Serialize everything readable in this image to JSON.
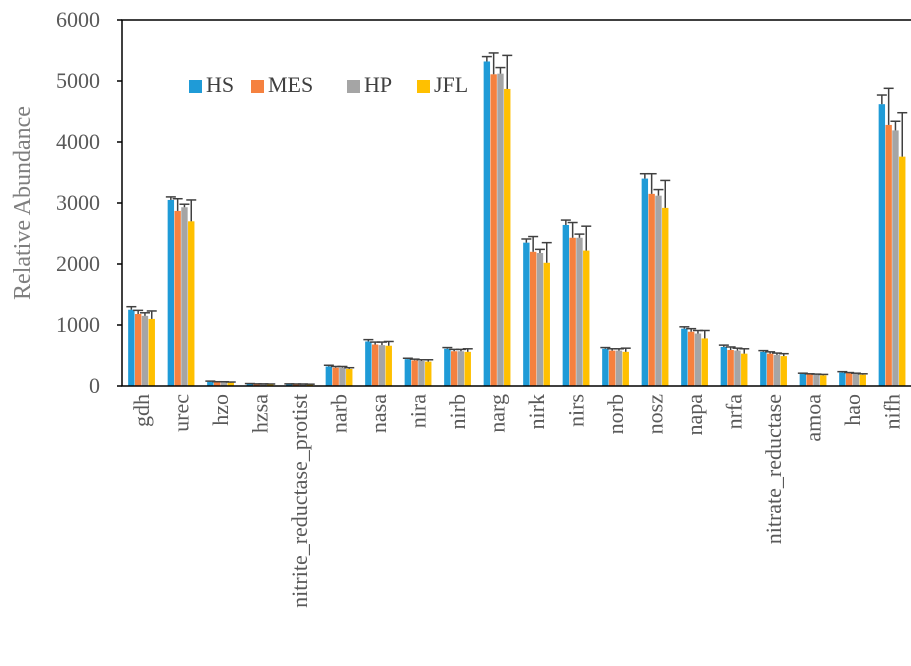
{
  "chart_data": {
    "type": "bar",
    "title": "",
    "xlabel": "",
    "ylabel": "Relative Abundance",
    "ylim": [
      0,
      6000
    ],
    "yticks": [
      0,
      1000,
      2000,
      3000,
      4000,
      5000,
      6000
    ],
    "grid": false,
    "legend_position": "top-left",
    "error_bars": true,
    "categories": [
      "gdh",
      "urec",
      "hzo",
      "hzsa",
      "nitrite_reductase_protist",
      "narb",
      "nasa",
      "nira",
      "nirb",
      "narg",
      "nirk",
      "nirs",
      "norb",
      "nosz",
      "napa",
      "nrfa",
      "nitrate_reductase",
      "amoa",
      "hao",
      "nifh"
    ],
    "series": [
      {
        "name": "HS",
        "color": "#1f9bd7",
        "values": [
          1250,
          3050,
          70,
          35,
          30,
          320,
          730,
          440,
          610,
          5320,
          2350,
          2640,
          610,
          3400,
          940,
          640,
          560,
          200,
          220,
          4620
        ],
        "errors": [
          50,
          50,
          10,
          5,
          5,
          20,
          30,
          15,
          20,
          80,
          60,
          80,
          20,
          80,
          30,
          30,
          20,
          10,
          15,
          150
        ]
      },
      {
        "name": "MES",
        "color": "#f5813f",
        "values": [
          1180,
          2870,
          60,
          30,
          28,
          300,
          680,
          420,
          570,
          5110,
          2200,
          2430,
          580,
          3150,
          890,
          590,
          530,
          190,
          210,
          4280
        ],
        "errors": [
          60,
          200,
          10,
          5,
          5,
          20,
          40,
          20,
          30,
          350,
          250,
          250,
          30,
          330,
          50,
          50,
          30,
          10,
          10,
          600
        ]
      },
      {
        "name": "HP",
        "color": "#a5a5a5",
        "values": [
          1150,
          2930,
          60,
          30,
          28,
          300,
          670,
          410,
          570,
          5120,
          2180,
          2430,
          580,
          3120,
          860,
          580,
          510,
          185,
          200,
          4190
        ],
        "errors": [
          50,
          50,
          10,
          5,
          5,
          20,
          50,
          20,
          30,
          100,
          60,
          60,
          30,
          100,
          50,
          40,
          30,
          10,
          10,
          150
        ]
      },
      {
        "name": "JFL",
        "color": "#ffc000",
        "values": [
          1100,
          2700,
          55,
          28,
          25,
          280,
          660,
          400,
          560,
          4870,
          2020,
          2220,
          560,
          2920,
          780,
          530,
          490,
          175,
          185,
          3760
        ],
        "errors": [
          130,
          350,
          10,
          5,
          5,
          20,
          70,
          30,
          50,
          550,
          330,
          400,
          60,
          450,
          130,
          80,
          40,
          15,
          15,
          720
        ]
      }
    ]
  }
}
